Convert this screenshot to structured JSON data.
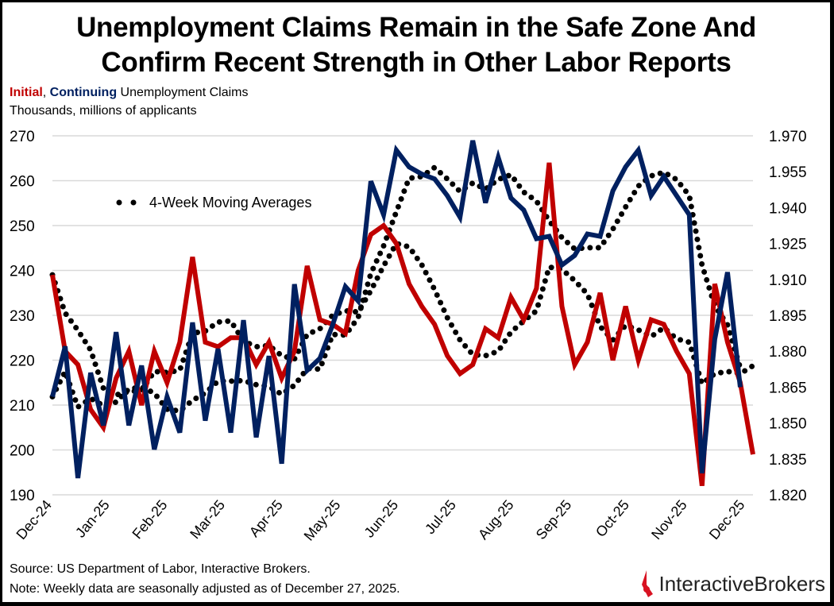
{
  "title_line1": "Unemployment Claims Remain in the Safe Zone And",
  "title_line2": "Confirm Recent Strength in Other Labor Reports",
  "subtitle": {
    "initial": "Initial",
    "sep": ", ",
    "continuing": "Continuing",
    "rest": " Unemployment Claims"
  },
  "units": "Thousands, millions of applicants",
  "source": "Source: US Department of Labor, Interactive Brokers.",
  "note": "Note: Weekly data are seasonally adjusted as of December 27, 2025.",
  "logo": {
    "part1": "Interactive",
    "part2": "Brokers"
  },
  "chart_data": {
    "type": "line",
    "frequency": "weekly",
    "x_tick_labels": [
      "Dec-24",
      "Jan-25",
      "Feb-25",
      "Mar-25",
      "Apr-25",
      "May-25",
      "Jun-25",
      "Jul-25",
      "Aug-25",
      "Sep-25",
      "Oct-25",
      "Nov-25",
      "Dec-25"
    ],
    "legend_text": "4-Week Moving Averages",
    "legend_placement": "top-left",
    "grid": true,
    "left_axis": {
      "ticks": [
        190,
        200,
        210,
        220,
        230,
        240,
        250,
        260,
        270
      ],
      "range": [
        190,
        270
      ]
    },
    "right_axis": {
      "ticks": [
        "1.820",
        "1.835",
        "1.850",
        "1.865",
        "1.880",
        "1.895",
        "1.910",
        "1.925",
        "1.940",
        "1.955",
        "1.970"
      ],
      "range": [
        1.82,
        1.97
      ]
    },
    "series": [
      {
        "name": "Initial",
        "axis": "left",
        "color": "#c00000",
        "values": [
          239,
          222,
          219,
          209,
          205,
          216,
          222,
          210,
          222,
          215,
          224,
          243,
          224,
          223,
          225,
          225,
          219,
          224,
          216,
          222,
          241,
          229,
          228,
          226,
          240,
          248,
          250,
          246,
          237,
          232,
          228,
          221,
          217,
          219,
          227,
          225,
          234,
          229,
          236,
          264,
          232,
          219,
          224,
          235,
          220,
          232,
          220,
          229,
          228,
          222,
          217,
          192,
          237,
          224,
          215,
          199
        ]
      },
      {
        "name": "Continuing",
        "axis": "right",
        "color": "#002060",
        "values": [
          1.861,
          1.882,
          1.827,
          1.871,
          1.849,
          1.888,
          1.849,
          1.874,
          1.839,
          1.861,
          1.846,
          1.892,
          1.851,
          1.881,
          1.846,
          1.893,
          1.844,
          1.878,
          1.833,
          1.908,
          1.872,
          1.877,
          1.891,
          1.907,
          1.901,
          1.951,
          1.937,
          1.964,
          1.957,
          1.954,
          1.952,
          1.945,
          1.936,
          1.968,
          1.942,
          1.961,
          1.944,
          1.939,
          1.927,
          1.928,
          1.916,
          1.92,
          1.929,
          1.928,
          1.947,
          1.957,
          1.964,
          1.945,
          1.953,
          1.945,
          1.937,
          1.829,
          1.885,
          1.913,
          1.865
        ]
      }
    ],
    "moving_average_color": "#000000"
  }
}
